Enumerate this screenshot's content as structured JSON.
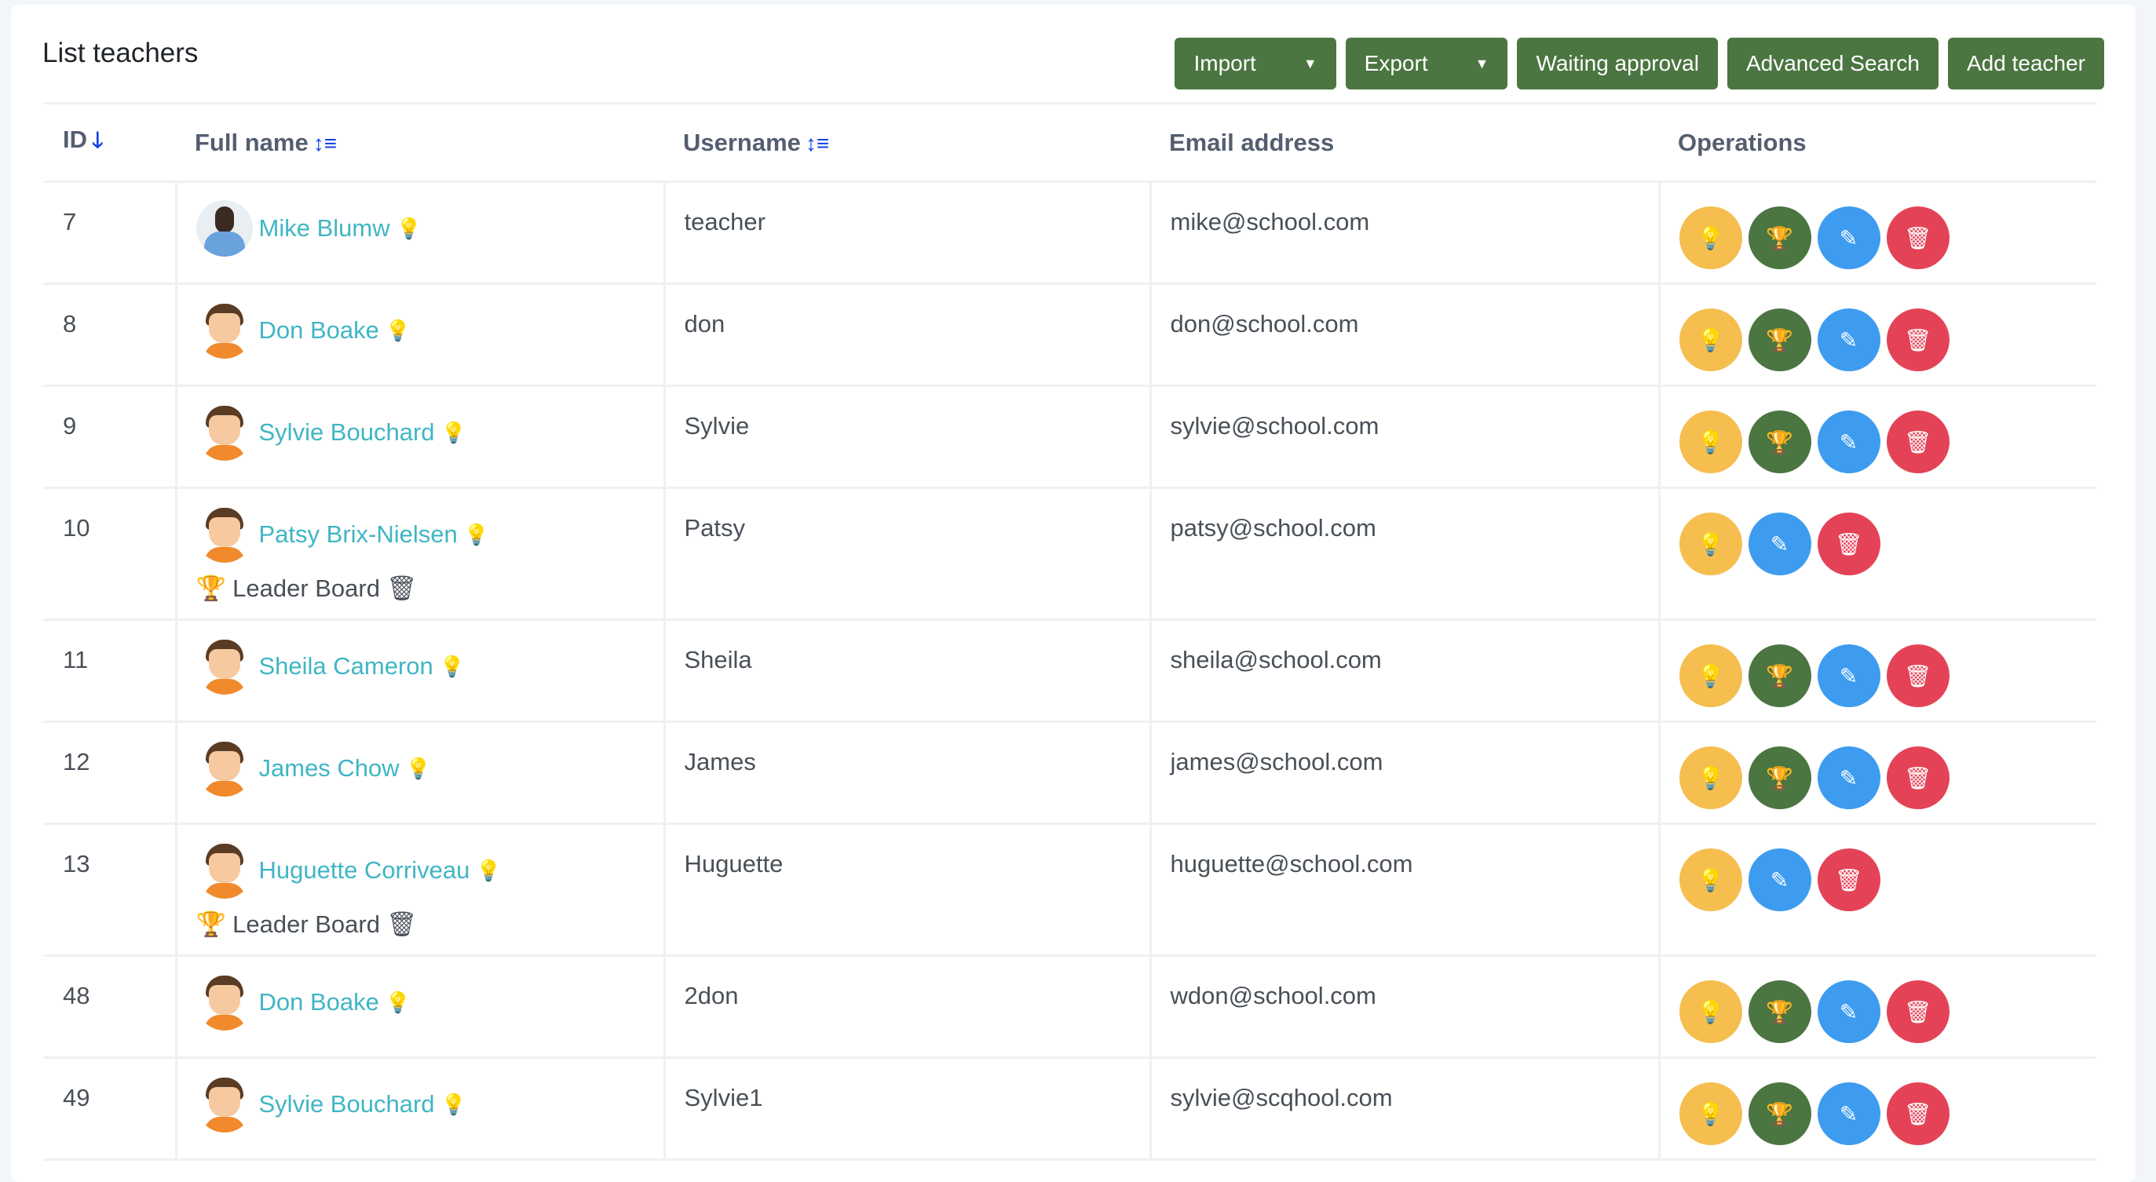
{
  "page": {
    "title": "List teachers"
  },
  "toolbar": {
    "import": "Import",
    "export": "Export",
    "waiting": "Waiting approval",
    "advanced": "Advanced Search",
    "add": "Add teacher"
  },
  "table": {
    "headers": {
      "id": "ID",
      "fullname": "Full name",
      "username": "Username",
      "email": "Email address",
      "operations": "Operations"
    },
    "leader_label": "Leader Board",
    "rows": [
      {
        "id": "7",
        "name": "Mike Blumw",
        "username": "teacher",
        "email": "mike@school.com",
        "avatar": "photo",
        "leaderboard": false
      },
      {
        "id": "8",
        "name": "Don Boake",
        "username": "don",
        "email": "don@school.com",
        "avatar": "cartoon",
        "leaderboard": false
      },
      {
        "id": "9",
        "name": "Sylvie Bouchard",
        "username": "Sylvie",
        "email": "sylvie@school.com",
        "avatar": "cartoon",
        "leaderboard": false
      },
      {
        "id": "10",
        "name": "Patsy Brix-Nielsen",
        "username": "Patsy",
        "email": "patsy@school.com",
        "avatar": "cartoon",
        "leaderboard": true
      },
      {
        "id": "11",
        "name": "Sheila Cameron",
        "username": "Sheila",
        "email": "sheila@school.com",
        "avatar": "cartoon",
        "leaderboard": false
      },
      {
        "id": "12",
        "name": "James Chow",
        "username": "James",
        "email": "james@school.com",
        "avatar": "cartoon",
        "leaderboard": false
      },
      {
        "id": "13",
        "name": "Huguette Corriveau",
        "username": "Huguette",
        "email": "huguette@school.com",
        "avatar": "cartoon",
        "leaderboard": true
      },
      {
        "id": "48",
        "name": "Don Boake",
        "username": "2don",
        "email": "wdon@school.com",
        "avatar": "cartoon",
        "leaderboard": false
      },
      {
        "id": "49",
        "name": "Sylvie Bouchard",
        "username": "Sylvie1",
        "email": "sylvie@scqhool.com",
        "avatar": "cartoon",
        "leaderboard": false
      }
    ]
  },
  "colors": {
    "primary_button": "#4b7541",
    "link": "#3fb6c4",
    "sort_icon": "#1140e6",
    "op_yellow": "#f5be4f",
    "op_green": "#4b7541",
    "op_blue": "#3d9cf0",
    "op_red": "#e44357"
  }
}
